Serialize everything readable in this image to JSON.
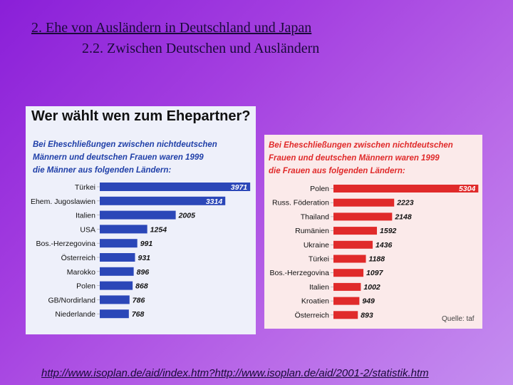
{
  "slide": {
    "title_line1": "2. Ehe von Ausländern in Deutschland und Japan",
    "title_line2": "2.2. Zwischen Deutschen und Ausländern",
    "url": "http://www.isoplan.de/aid/index.htm?http://www.isoplan.de/aid/2001-2/statistik.htm"
  },
  "chart_data": [
    {
      "type": "bar",
      "orientation": "horizontal",
      "title": "Wer wählt wen zum Ehepartner?",
      "subtitle_lines": [
        "Bei Eheschließungen zwischen nichtdeutschen",
        "Männern und deutschen Frauen waren 1999",
        "die Männer aus folgenden Ländern:"
      ],
      "categories": [
        "Türkei",
        "Ehem. Jugoslawien",
        "Italien",
        "USA",
        "Bos.-Herzegovina",
        "Österreich",
        "Marokko",
        "Polen",
        "GB/Nordirland",
        "Niederlande"
      ],
      "values": [
        3971,
        3314,
        2005,
        1254,
        991,
        931,
        896,
        868,
        786,
        768
      ],
      "value_labels": [
        "3971",
        "3314",
        "2005",
        "1254",
        "991",
        "931",
        "896",
        "868",
        "786",
        "768"
      ],
      "color": "#2b47b8",
      "xlim": [
        0,
        4100
      ]
    },
    {
      "type": "bar",
      "orientation": "horizontal",
      "title": "",
      "subtitle_lines": [
        "Bei Eheschließungen zwischen nichtdeutschen",
        "Frauen und deutschen Männern waren 1999",
        "die Frauen aus folgenden Ländern:"
      ],
      "categories": [
        "Polen",
        "Russ. Föderation",
        "Thailand",
        "Rumänien",
        "Ukraine",
        "Türkei",
        "Bos.-Herzegovina",
        "Italien",
        "Kroatien",
        "Österreich"
      ],
      "values": [
        5304,
        2223,
        2148,
        1592,
        1436,
        1188,
        1097,
        1002,
        949,
        893
      ],
      "value_labels": [
        "5304",
        "2223",
        "2148",
        "1592",
        "1436",
        "1188",
        "1097",
        "1002",
        "949",
        "893"
      ],
      "color": "#e02a2a",
      "source": "Quelle: taf",
      "xlim": [
        0,
        5400
      ]
    }
  ]
}
